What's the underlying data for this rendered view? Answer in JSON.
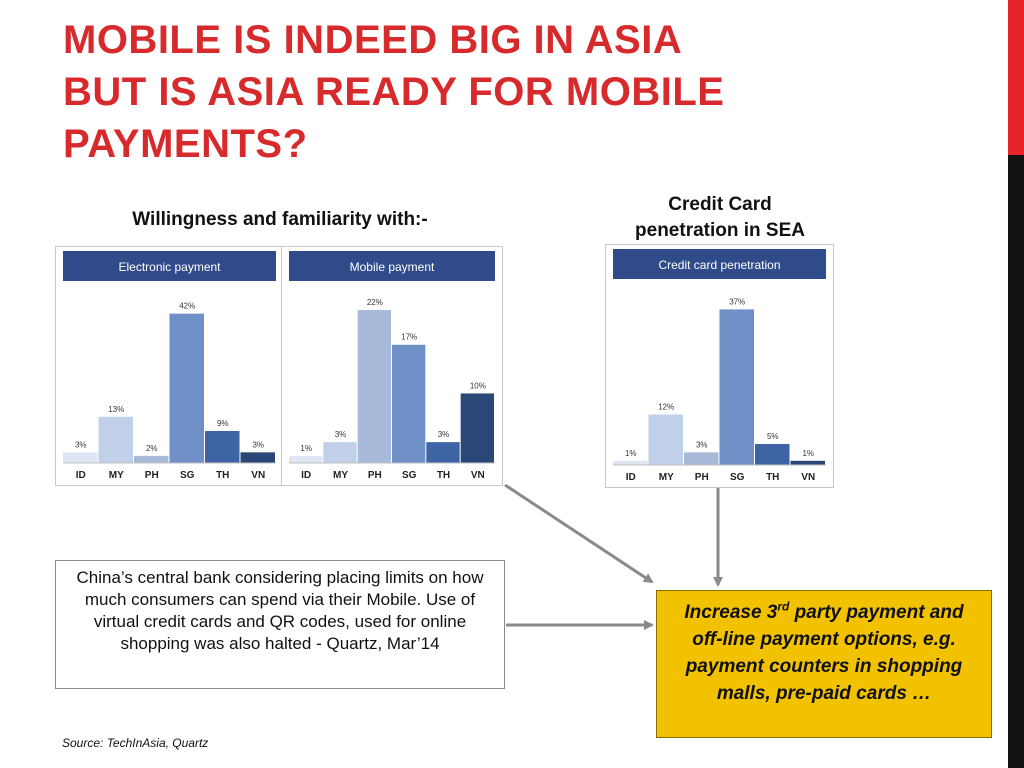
{
  "title_lines": [
    "MOBILE IS INDEED BIG IN ASIA",
    "BUT IS ASIA READY FOR MOBILE",
    "PAYMENTS?"
  ],
  "subheadings": {
    "willingness": "Willingness and familiarity with:-",
    "credit_card_line1": "Credit Card",
    "credit_card_line2": "penetration in SEA"
  },
  "chart_data": [
    {
      "type": "bar",
      "title": "Electronic payment",
      "categories": [
        "ID",
        "MY",
        "PH",
        "SG",
        "TH",
        "VN"
      ],
      "values": [
        3,
        13,
        2,
        42,
        9,
        3
      ],
      "value_labels": [
        "3%",
        "13%",
        "2%",
        "42%",
        "9%",
        "3%"
      ],
      "colors": [
        "#dde6f2",
        "#c0d0e8",
        "#a7bada",
        "#6f8fc7",
        "#3e64a6",
        "#2b4777"
      ],
      "ylim": [
        0,
        45
      ]
    },
    {
      "type": "bar",
      "title": "Mobile payment",
      "categories": [
        "ID",
        "MY",
        "PH",
        "SG",
        "TH",
        "VN"
      ],
      "values": [
        1,
        3,
        22,
        17,
        3,
        10
      ],
      "value_labels": [
        "1%",
        "3%",
        "22%",
        "17%",
        "3%",
        "10%"
      ],
      "colors": [
        "#dde6f2",
        "#c0d0e8",
        "#a7bada",
        "#6f8fc7",
        "#3e64a6",
        "#2b4777"
      ],
      "ylim": [
        0,
        23
      ]
    },
    {
      "type": "bar",
      "title": "Credit card penetration",
      "categories": [
        "ID",
        "MY",
        "PH",
        "SG",
        "TH",
        "VN"
      ],
      "values": [
        1,
        12,
        3,
        37,
        5,
        1
      ],
      "value_labels": [
        "1%",
        "12%",
        "3%",
        "37%",
        "5%",
        "1%"
      ],
      "colors": [
        "#dde6f2",
        "#c0d0e8",
        "#a7bada",
        "#6f8fc7",
        "#3e64a6",
        "#2b4777"
      ],
      "ylim": [
        0,
        39
      ]
    }
  ],
  "callout": {
    "text": "China’s central bank considering placing limits on how much consumers can spend via their Mobile. Use of virtual credit cards and QR codes, used for online shopping was also halted - Quartz, Mar’14"
  },
  "conclusion": {
    "part1": "Increase 3",
    "sup": "rd",
    "part2": " party payment and off-line payment options, e.g. payment counters in shopping malls, pre-paid cards …"
  },
  "source": "Source: TechInAsia, Quartz",
  "colors": {
    "title_red": "#d72a2c",
    "header_blue": "#2f4b8a",
    "conclusion_yellow": "#f2c200",
    "arrow_gray": "#8a8a8a"
  }
}
